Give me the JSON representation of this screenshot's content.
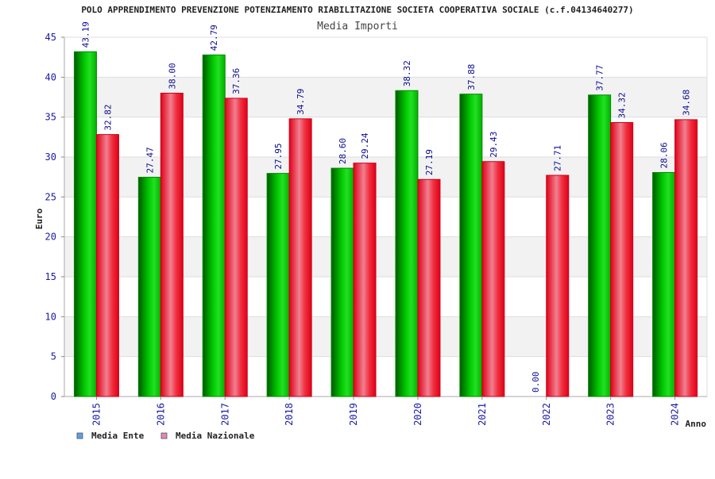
{
  "chart_data": {
    "type": "bar",
    "title": "POLO APPRENDIMENTO PREVENZIONE POTENZIAMENTO RIABILITAZIONE SOCIETA COOPERATIVA SOCIALE (c.f.04134640277)",
    "subtitle": "Media Importi",
    "xlabel": "Anno",
    "ylabel": "Euro",
    "ylim": [
      0,
      45
    ],
    "yticks": [
      0,
      5,
      10,
      15,
      20,
      25,
      30,
      35,
      40,
      45
    ],
    "categories": [
      "2015",
      "2016",
      "2017",
      "2018",
      "2019",
      "2020",
      "2021",
      "2022",
      "2023",
      "2024"
    ],
    "series": [
      {
        "name": "Media Ente",
        "color": "#00aa00",
        "legend_color": "#5aa0e8",
        "values": [
          43.19,
          27.47,
          42.79,
          27.95,
          28.6,
          38.32,
          37.88,
          0.0,
          37.77,
          28.06
        ],
        "labels": [
          "43.19",
          "27.47",
          "42.79",
          "27.95",
          "28.60",
          "38.32",
          "37.88",
          "0.00",
          "37.77",
          "28.06"
        ]
      },
      {
        "name": "Media Nazionale",
        "color": "#ee0022",
        "legend_color": "#e088bb",
        "values": [
          32.82,
          38.0,
          37.36,
          34.79,
          29.24,
          27.19,
          29.43,
          27.71,
          34.32,
          34.68
        ],
        "labels": [
          "32.82",
          "38.00",
          "37.36",
          "34.79",
          "29.24",
          "27.19",
          "29.43",
          "27.71",
          "34.32",
          "34.68"
        ]
      }
    ],
    "grid": true,
    "legend_position": "bottom-left"
  }
}
